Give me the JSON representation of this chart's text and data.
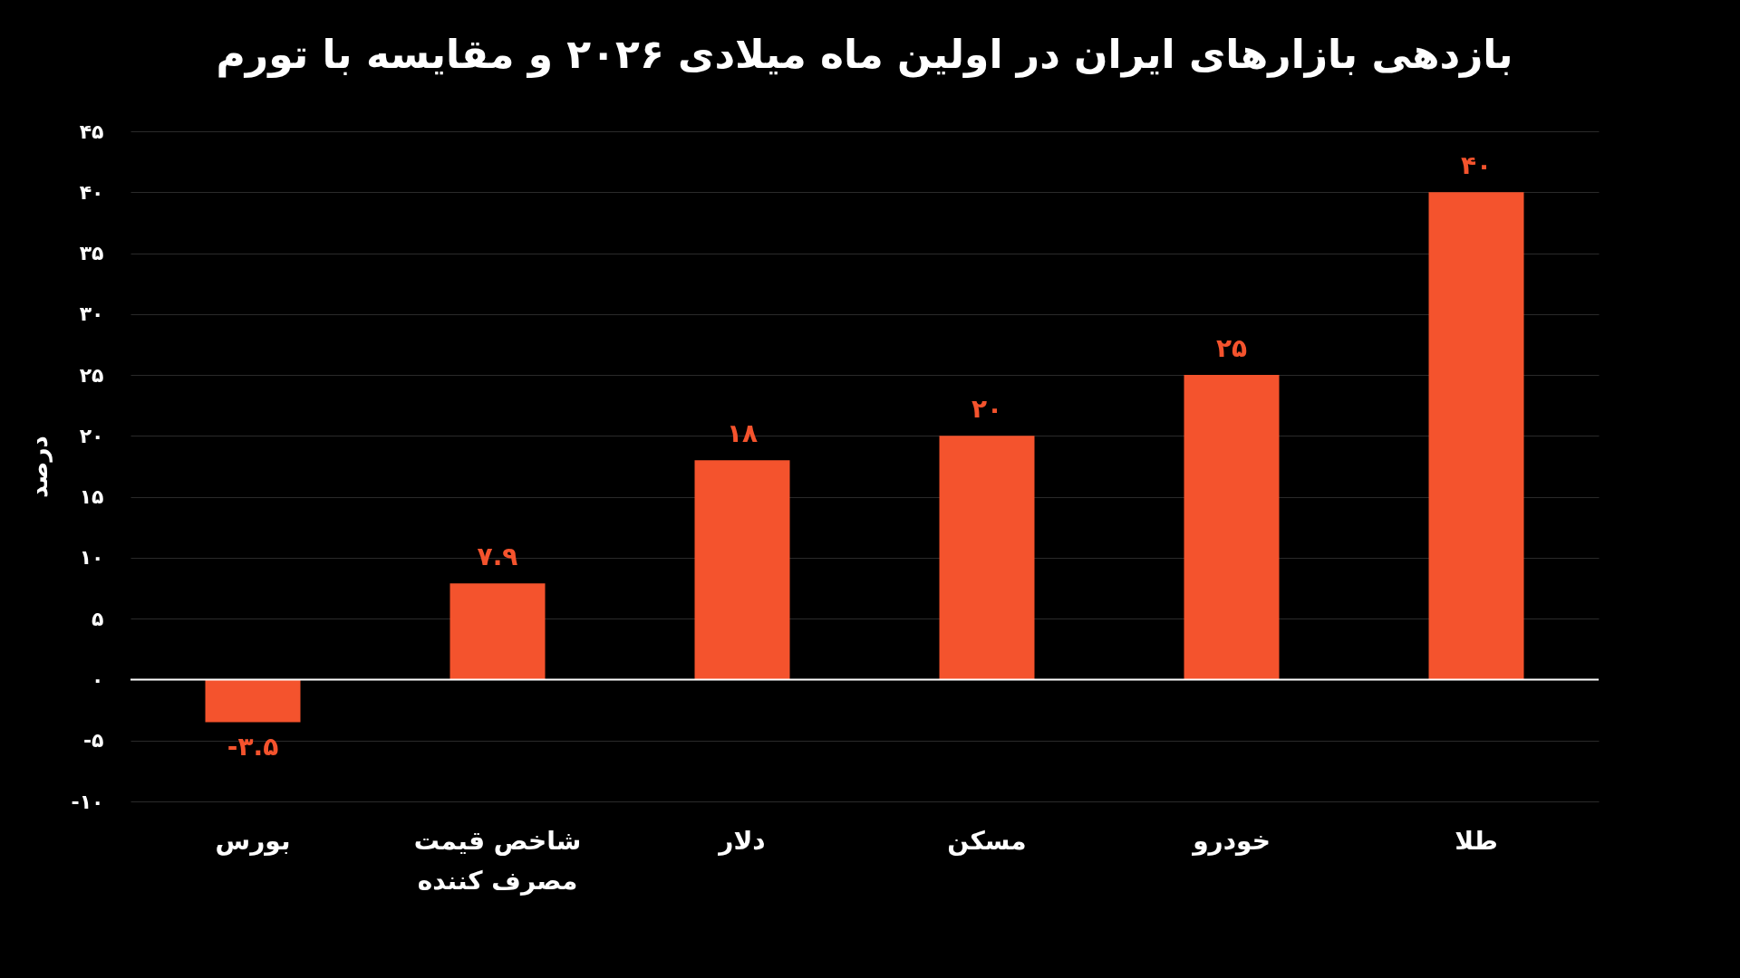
{
  "chart_data": {
    "type": "bar",
    "title": "بازدهی بازارهای ایران در اولین ماه میلادی ۲۰۲۶ و مقایسه با تورم",
    "ylabel": "درصد",
    "categories": [
      "بورس",
      "شاخص قیمت مصرف کننده",
      "دلار",
      "مسکن",
      "خودرو",
      "طلا"
    ],
    "values": [
      -3.5,
      7.9,
      18,
      20,
      25,
      40
    ],
    "value_labels": [
      "-۳.۵",
      "۷.۹",
      "۱۸",
      "۲۰",
      "۲۵",
      "۴۰"
    ],
    "color": "#f4532d",
    "ylim": [
      -10,
      45
    ],
    "yticks": [
      {
        "value": -10,
        "label": "-۱۰"
      },
      {
        "value": -5,
        "label": "-۵"
      },
      {
        "value": 0,
        "label": "۰"
      },
      {
        "value": 5,
        "label": "۵"
      },
      {
        "value": 10,
        "label": "۱۰"
      },
      {
        "value": 15,
        "label": "۱۵"
      },
      {
        "value": 20,
        "label": "۲۰"
      },
      {
        "value": 25,
        "label": "۲۵"
      },
      {
        "value": 30,
        "label": "۳۰"
      },
      {
        "value": 35,
        "label": "۳۵"
      },
      {
        "value": 40,
        "label": "۴۰"
      },
      {
        "value": 45,
        "label": "۴۵"
      }
    ],
    "grid": "y",
    "ref_lines": [
      {
        "axis": "y",
        "value": 0,
        "color": "#ffffff"
      }
    ]
  }
}
